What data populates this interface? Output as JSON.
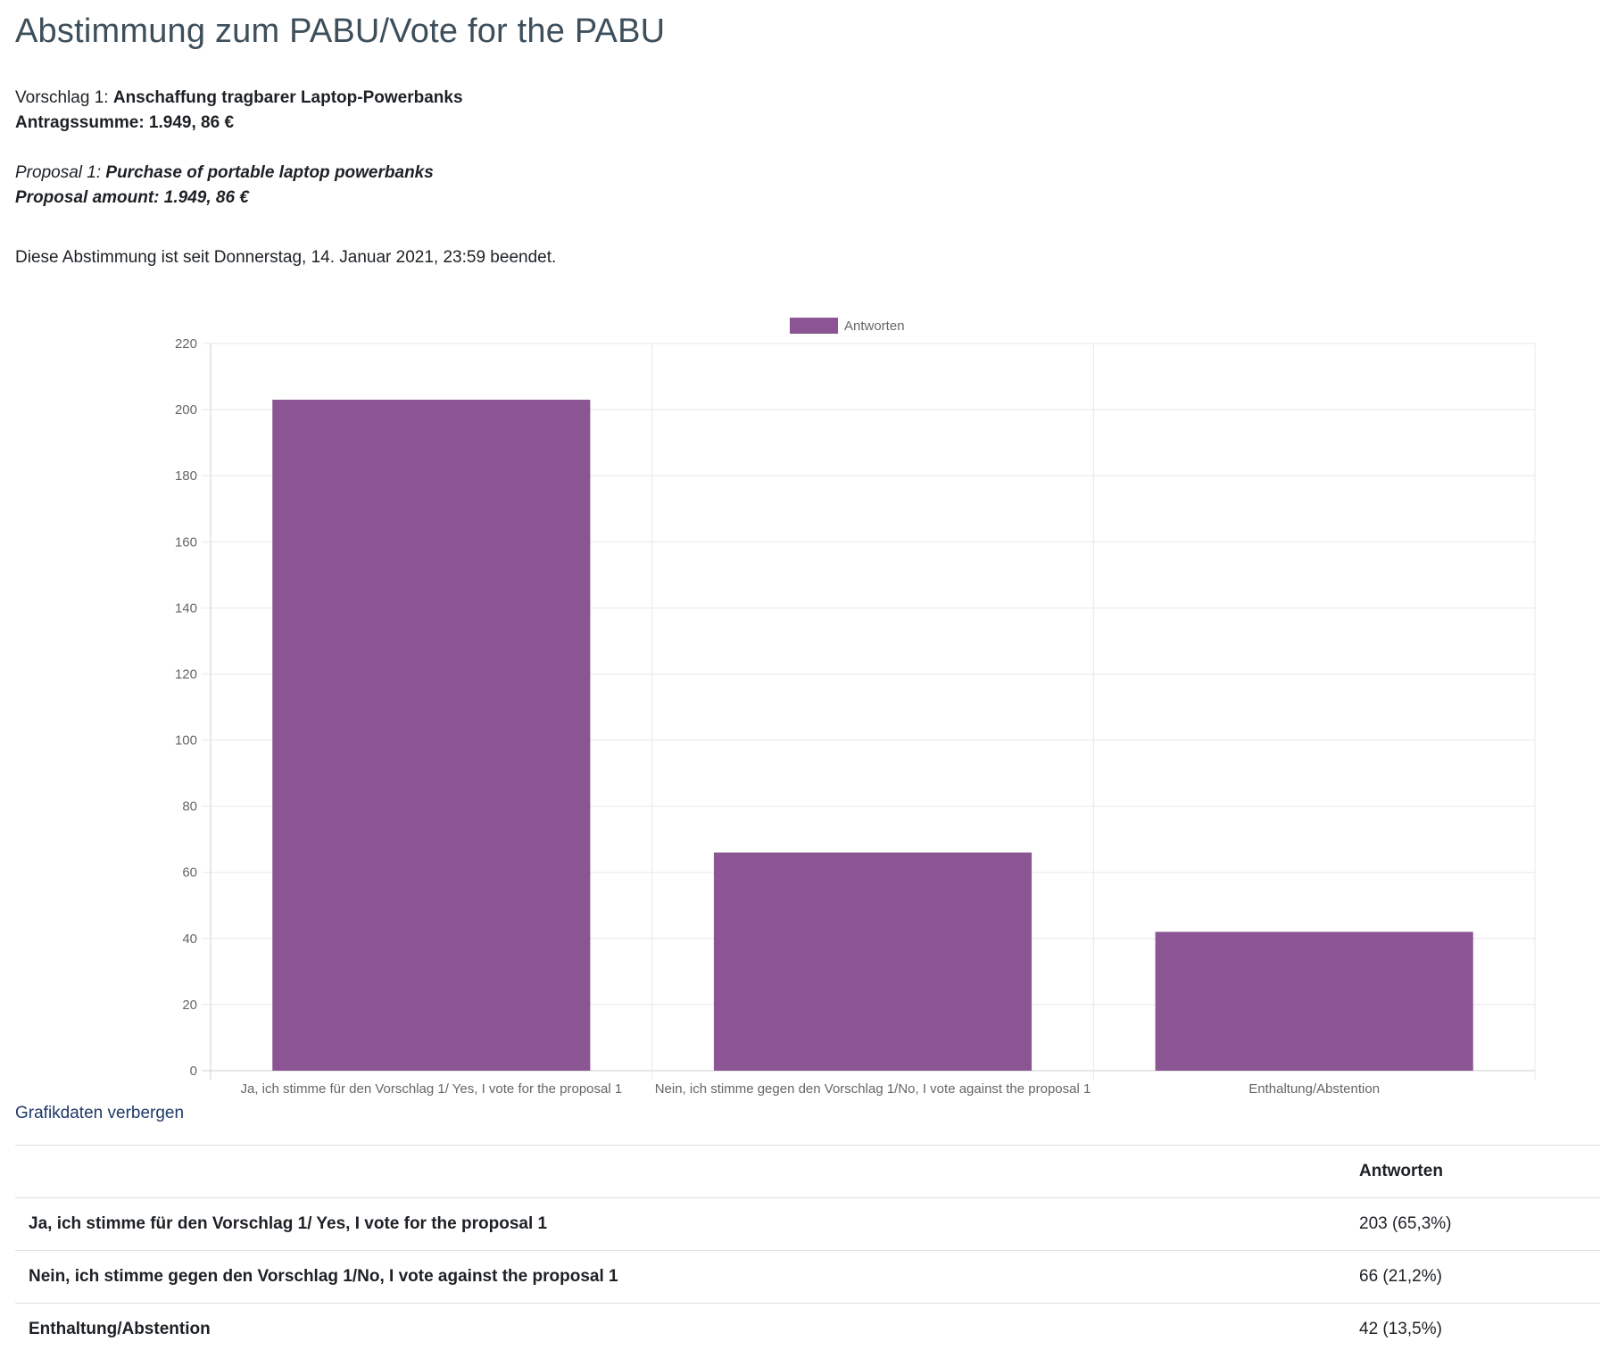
{
  "page": {
    "title": "Abstimmung zum PABU/Vote for the PABU"
  },
  "proposal_de": {
    "prefix": "Vorschlag 1:",
    "name": "Anschaffung tragbarer Laptop-Powerbanks",
    "amount": "Antragssumme: 1.949, 86 €"
  },
  "proposal_en": {
    "prefix": "Proposal 1:",
    "name": "Purchase of portable laptop powerbanks",
    "amount": "Proposal amount: 1.949, 86 €"
  },
  "status": {
    "text": "Diese Abstimmung ist seit Donnerstag, 14. Januar 2021, 23:59 beendet."
  },
  "chart_data": {
    "type": "bar",
    "categories": [
      "Ja, ich stimme für den Vorschlag 1/ Yes, I vote for the proposal 1",
      "Nein, ich stimme gegen den Vorschlag 1/No, I vote against the proposal 1",
      "Enthaltung/Abstention"
    ],
    "series": [
      {
        "name": "Antworten",
        "values": [
          203,
          66,
          42
        ],
        "color": "#8a5592"
      }
    ],
    "ylim": [
      0,
      220
    ],
    "yticks": [
      0,
      20,
      40,
      60,
      80,
      100,
      120,
      140,
      160,
      180,
      200,
      220
    ],
    "grid": true,
    "legend": "top-center",
    "title": "",
    "xlabel": "",
    "ylabel": ""
  },
  "toggle": {
    "label": "Grafikdaten verbergen"
  },
  "table": {
    "header_label": "",
    "header_value": "Antworten",
    "rows": [
      {
        "label": "Ja, ich stimme für den Vorschlag 1/ Yes, I vote for the proposal 1",
        "value": "203 (65,3%)"
      },
      {
        "label": "Nein, ich stimme gegen den Vorschlag 1/No, I vote against the proposal 1",
        "value": "66 (21,2%)"
      },
      {
        "label": "Enthaltung/Abstention",
        "value": "42 (13,5%)"
      }
    ]
  },
  "colors": {
    "title": "#3d4f5b",
    "link": "#1f3a68",
    "bar": "#8a5592"
  }
}
